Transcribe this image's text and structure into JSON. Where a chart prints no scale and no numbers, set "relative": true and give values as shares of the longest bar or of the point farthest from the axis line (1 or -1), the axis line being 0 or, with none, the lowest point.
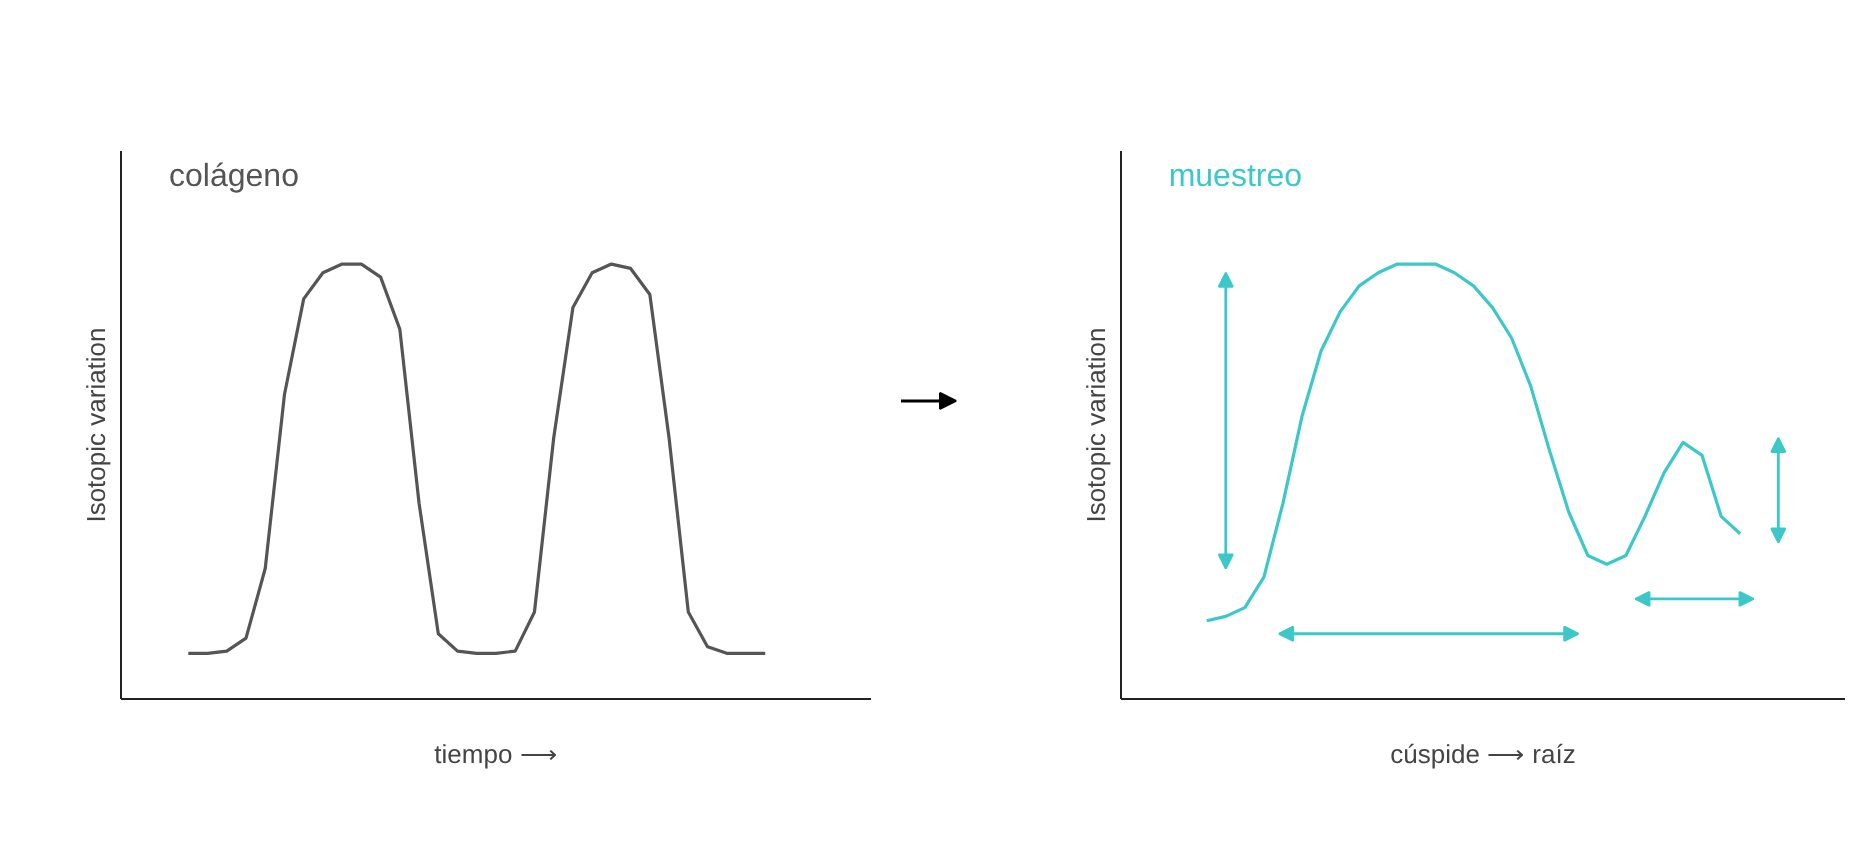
{
  "chart_data": [
    {
      "type": "line",
      "title": "colágeno",
      "xlabel": "tiempo ⟶",
      "ylabel": "Isotopic variation",
      "relative": true,
      "categories": [
        null,
        null,
        null,
        null,
        null,
        null,
        null,
        null,
        null,
        null,
        null,
        null,
        null,
        null,
        null,
        null,
        null,
        null,
        null,
        null,
        null,
        null,
        null,
        null,
        null,
        null,
        null,
        null,
        null,
        null,
        null,
        null,
        null,
        null,
        null,
        null,
        null,
        null,
        null
      ],
      "series": [
        {
          "color": "#555555",
          "values": [
            null,
            null,
            null,
            0.105,
            0.105,
            0.11,
            0.14,
            0.3,
            0.7,
            0.92,
            0.98,
            1.0,
            1.0,
            0.97,
            0.85,
            0.45,
            0.15,
            0.11,
            0.105,
            0.105,
            0.11,
            0.2,
            0.6,
            0.9,
            0.98,
            1.0,
            0.99,
            0.93,
            0.6,
            0.2,
            0.12,
            0.105,
            0.105,
            0.105,
            null,
            null,
            null,
            null,
            null
          ]
        }
      ]
    },
    {
      "type": "line",
      "title": "muestreo",
      "xlabel": "cúspide ⟶ raíz",
      "ylabel": "Isotopic variation",
      "relative": true,
      "categories": [
        null,
        null,
        null,
        null,
        null,
        null,
        null,
        null,
        null,
        null,
        null,
        null,
        null,
        null,
        null,
        null,
        null,
        null,
        null,
        null,
        null,
        null,
        null,
        null,
        null,
        null,
        null,
        null,
        null,
        null,
        null,
        null,
        null,
        null,
        null,
        null,
        null,
        null
      ],
      "series": [
        {
          "color": "#3cc8c8",
          "values": [
            null,
            null,
            null,
            null,
            0.18,
            0.19,
            0.21,
            0.28,
            0.45,
            0.65,
            0.8,
            0.89,
            0.95,
            0.98,
            1.0,
            1.0,
            1.0,
            0.98,
            0.95,
            0.9,
            0.83,
            0.72,
            0.57,
            0.43,
            0.33,
            0.31,
            0.33,
            0.42,
            0.52,
            0.59,
            0.56,
            0.42,
            0.38,
            null,
            null,
            null,
            null,
            null
          ]
        }
      ]
    }
  ]
}
